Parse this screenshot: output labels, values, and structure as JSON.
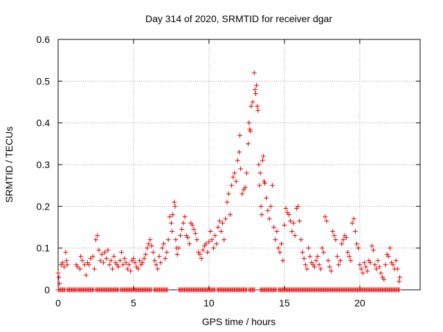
{
  "chart_data": {
    "type": "scatter",
    "title": "Day 314 of 2020, SRMTID for receiver dgar",
    "xlabel": "GPS time / hours",
    "ylabel": "SRMTID / TECUs",
    "xlim": [
      0,
      24
    ],
    "ylim": [
      0,
      0.6
    ],
    "xticks": [
      "0",
      "5",
      "10",
      "15",
      "20"
    ],
    "yticks": [
      "0",
      "0.1",
      "0.2",
      "0.3",
      "0.4",
      "0.5",
      "0.6"
    ],
    "grid": true,
    "marker": "+",
    "color": "#e00000",
    "series": [
      {
        "name": "SRMTID",
        "points": [
          [
            0.0,
            0.04
          ],
          [
            0.05,
            0.03
          ],
          [
            0.1,
            0.015
          ],
          [
            0.2,
            0.06
          ],
          [
            0.3,
            0.065
          ],
          [
            0.4,
            0.055
          ],
          [
            0.5,
            0.09
          ],
          [
            0.55,
            0.07
          ],
          [
            0.6,
            0.06
          ],
          [
            1.2,
            0.06
          ],
          [
            1.3,
            0.055
          ],
          [
            1.45,
            0.05
          ],
          [
            1.5,
            0.08
          ],
          [
            1.6,
            0.07
          ],
          [
            1.75,
            0.06
          ],
          [
            1.85,
            0.035
          ],
          [
            1.95,
            0.065
          ],
          [
            2.05,
            0.06
          ],
          [
            2.15,
            0.075
          ],
          [
            2.3,
            0.08
          ],
          [
            2.4,
            0.05
          ],
          [
            2.5,
            0.12
          ],
          [
            2.6,
            0.13
          ],
          [
            2.7,
            0.095
          ],
          [
            2.8,
            0.07
          ],
          [
            2.9,
            0.085
          ],
          [
            3.0,
            0.065
          ],
          [
            3.1,
            0.09
          ],
          [
            3.2,
            0.075
          ],
          [
            3.3,
            0.095
          ],
          [
            3.4,
            0.06
          ],
          [
            3.5,
            0.07
          ],
          [
            3.6,
            0.05
          ],
          [
            3.7,
            0.08
          ],
          [
            3.8,
            0.065
          ],
          [
            3.9,
            0.06
          ],
          [
            4.0,
            0.055
          ],
          [
            4.1,
            0.07
          ],
          [
            4.2,
            0.09
          ],
          [
            4.3,
            0.06
          ],
          [
            4.4,
            0.075
          ],
          [
            4.5,
            0.065
          ],
          [
            4.6,
            0.05
          ],
          [
            4.7,
            0.06
          ],
          [
            4.8,
            0.045
          ],
          [
            4.9,
            0.07
          ],
          [
            5.0,
            0.075
          ],
          [
            5.1,
            0.065
          ],
          [
            5.2,
            0.055
          ],
          [
            5.3,
            0.05
          ],
          [
            5.4,
            0.07
          ],
          [
            5.5,
            0.06
          ],
          [
            5.6,
            0.065
          ],
          [
            5.7,
            0.075
          ],
          [
            5.8,
            0.085
          ],
          [
            5.9,
            0.1
          ],
          [
            6.0,
            0.11
          ],
          [
            6.1,
            0.12
          ],
          [
            6.2,
            0.105
          ],
          [
            6.3,
            0.09
          ],
          [
            6.4,
            0.07
          ],
          [
            6.5,
            0.06
          ],
          [
            6.6,
            0.05
          ],
          [
            6.7,
            0.08
          ],
          [
            6.8,
            0.065
          ],
          [
            6.9,
            0.1
          ],
          [
            7.0,
            0.11
          ],
          [
            7.1,
            0.075
          ],
          [
            7.2,
            0.09
          ],
          [
            7.3,
            0.12
          ],
          [
            7.4,
            0.175
          ],
          [
            7.5,
            0.16
          ],
          [
            7.55,
            0.14
          ],
          [
            7.6,
            0.18
          ],
          [
            7.7,
            0.21
          ],
          [
            7.75,
            0.2
          ],
          [
            7.8,
            0.12
          ],
          [
            7.85,
            0.1
          ],
          [
            7.9,
            0.085
          ],
          [
            8.0,
            0.1
          ],
          [
            8.1,
            0.13
          ],
          [
            8.2,
            0.145
          ],
          [
            8.3,
            0.16
          ],
          [
            8.4,
            0.175
          ],
          [
            8.5,
            0.13
          ],
          [
            8.6,
            0.125
          ],
          [
            8.7,
            0.11
          ],
          [
            8.8,
            0.16
          ],
          [
            8.9,
            0.155
          ],
          [
            9.0,
            0.145
          ],
          [
            9.1,
            0.135
          ],
          [
            9.2,
            0.12
          ],
          [
            9.3,
            0.09
          ],
          [
            9.4,
            0.085
          ],
          [
            9.5,
            0.075
          ],
          [
            9.6,
            0.095
          ],
          [
            9.7,
            0.105
          ],
          [
            9.8,
            0.11
          ],
          [
            9.9,
            0.09
          ],
          [
            10.0,
            0.115
          ],
          [
            10.1,
            0.14
          ],
          [
            10.2,
            0.12
          ],
          [
            10.3,
            0.1
          ],
          [
            10.4,
            0.13
          ],
          [
            10.5,
            0.11
          ],
          [
            10.6,
            0.15
          ],
          [
            10.7,
            0.165
          ],
          [
            10.8,
            0.14
          ],
          [
            10.9,
            0.16
          ],
          [
            11.0,
            0.12
          ],
          [
            11.1,
            0.17
          ],
          [
            11.2,
            0.21
          ],
          [
            11.3,
            0.23
          ],
          [
            11.4,
            0.18
          ],
          [
            11.5,
            0.25
          ],
          [
            11.6,
            0.27
          ],
          [
            11.7,
            0.28
          ],
          [
            11.8,
            0.26
          ],
          [
            11.9,
            0.31
          ],
          [
            12.0,
            0.33
          ],
          [
            12.05,
            0.37
          ],
          [
            12.1,
            0.29
          ],
          [
            12.2,
            0.23
          ],
          [
            12.3,
            0.24
          ],
          [
            12.4,
            0.245
          ],
          [
            12.5,
            0.28
          ],
          [
            12.6,
            0.35
          ],
          [
            12.65,
            0.4
          ],
          [
            12.7,
            0.385
          ],
          [
            12.75,
            0.38
          ],
          [
            12.8,
            0.44
          ],
          [
            12.9,
            0.45
          ],
          [
            13.0,
            0.52
          ],
          [
            13.05,
            0.48
          ],
          [
            13.1,
            0.47
          ],
          [
            13.15,
            0.49
          ],
          [
            13.2,
            0.44
          ],
          [
            13.25,
            0.43
          ],
          [
            13.3,
            0.3
          ],
          [
            13.35,
            0.25
          ],
          [
            13.4,
            0.28
          ],
          [
            13.45,
            0.2
          ],
          [
            13.5,
            0.18
          ],
          [
            13.55,
            0.31
          ],
          [
            13.6,
            0.32
          ],
          [
            13.65,
            0.26
          ],
          [
            13.7,
            0.255
          ],
          [
            13.8,
            0.22
          ],
          [
            13.9,
            0.19
          ],
          [
            14.0,
            0.17
          ],
          [
            14.1,
            0.2
          ],
          [
            14.2,
            0.25
          ],
          [
            14.3,
            0.15
          ],
          [
            14.4,
            0.12
          ],
          [
            14.5,
            0.14
          ],
          [
            14.6,
            0.1
          ],
          [
            14.7,
            0.09
          ],
          [
            14.8,
            0.11
          ],
          [
            14.9,
            0.07
          ],
          [
            15.0,
            0.155
          ],
          [
            15.1,
            0.195
          ],
          [
            15.2,
            0.185
          ],
          [
            15.3,
            0.18
          ],
          [
            15.4,
            0.165
          ],
          [
            15.5,
            0.14
          ],
          [
            15.6,
            0.16
          ],
          [
            15.7,
            0.13
          ],
          [
            15.8,
            0.195
          ],
          [
            15.9,
            0.2
          ],
          [
            16.0,
            0.165
          ],
          [
            16.1,
            0.12
          ],
          [
            16.2,
            0.09
          ],
          [
            16.3,
            0.075
          ],
          [
            16.4,
            0.06
          ],
          [
            16.5,
            0.05
          ],
          [
            16.6,
            0.1
          ],
          [
            16.7,
            0.08
          ],
          [
            16.8,
            0.065
          ],
          [
            16.9,
            0.06
          ],
          [
            17.0,
            0.055
          ],
          [
            17.1,
            0.07
          ],
          [
            17.2,
            0.08
          ],
          [
            17.3,
            0.06
          ],
          [
            17.4,
            0.05
          ],
          [
            17.5,
            0.1
          ],
          [
            17.6,
            0.09
          ],
          [
            17.7,
            0.175
          ],
          [
            17.8,
            0.165
          ],
          [
            17.9,
            0.07
          ],
          [
            18.0,
            0.055
          ],
          [
            18.1,
            0.045
          ],
          [
            18.2,
            0.14
          ],
          [
            18.3,
            0.13
          ],
          [
            18.4,
            0.12
          ],
          [
            18.5,
            0.08
          ],
          [
            18.6,
            0.06
          ],
          [
            18.7,
            0.07
          ],
          [
            18.8,
            0.11
          ],
          [
            18.9,
            0.12
          ],
          [
            19.0,
            0.13
          ],
          [
            19.1,
            0.125
          ],
          [
            19.2,
            0.09
          ],
          [
            19.3,
            0.08
          ],
          [
            19.4,
            0.07
          ],
          [
            19.5,
            0.16
          ],
          [
            19.6,
            0.17
          ],
          [
            19.7,
            0.14
          ],
          [
            19.8,
            0.11
          ],
          [
            19.9,
            0.1
          ],
          [
            20.0,
            0.06
          ],
          [
            20.1,
            0.05
          ],
          [
            20.2,
            0.04
          ],
          [
            20.3,
            0.065
          ],
          [
            20.4,
            0.055
          ],
          [
            20.5,
            0.045
          ],
          [
            20.6,
            0.07
          ],
          [
            20.7,
            0.065
          ],
          [
            20.8,
            0.105
          ],
          [
            20.9,
            0.095
          ],
          [
            21.0,
            0.06
          ],
          [
            21.1,
            0.05
          ],
          [
            21.2,
            0.07
          ],
          [
            21.3,
            0.055
          ],
          [
            21.4,
            0.04
          ],
          [
            21.5,
            0.03
          ],
          [
            21.6,
            0.025
          ],
          [
            21.7,
            0.06
          ],
          [
            21.8,
            0.085
          ],
          [
            21.9,
            0.08
          ],
          [
            22.0,
            0.1
          ],
          [
            22.1,
            0.065
          ],
          [
            22.2,
            0.06
          ],
          [
            22.3,
            0.05
          ],
          [
            22.4,
            0.07
          ],
          [
            22.5,
            0.05
          ],
          [
            22.6,
            0.02
          ],
          [
            22.65,
            0.03
          ]
        ],
        "zero_segments": [
          [
            0.0,
            0.45
          ],
          [
            0.6,
            1.2
          ],
          [
            1.3,
            2.4
          ],
          [
            2.5,
            4.05
          ],
          [
            4.15,
            6.2
          ],
          [
            6.35,
            7.3
          ],
          [
            8.0,
            10.4
          ],
          [
            10.55,
            12.5
          ],
          [
            12.65,
            13.05
          ],
          [
            13.4,
            14.45
          ],
          [
            14.6,
            22.65
          ]
        ]
      }
    ]
  }
}
